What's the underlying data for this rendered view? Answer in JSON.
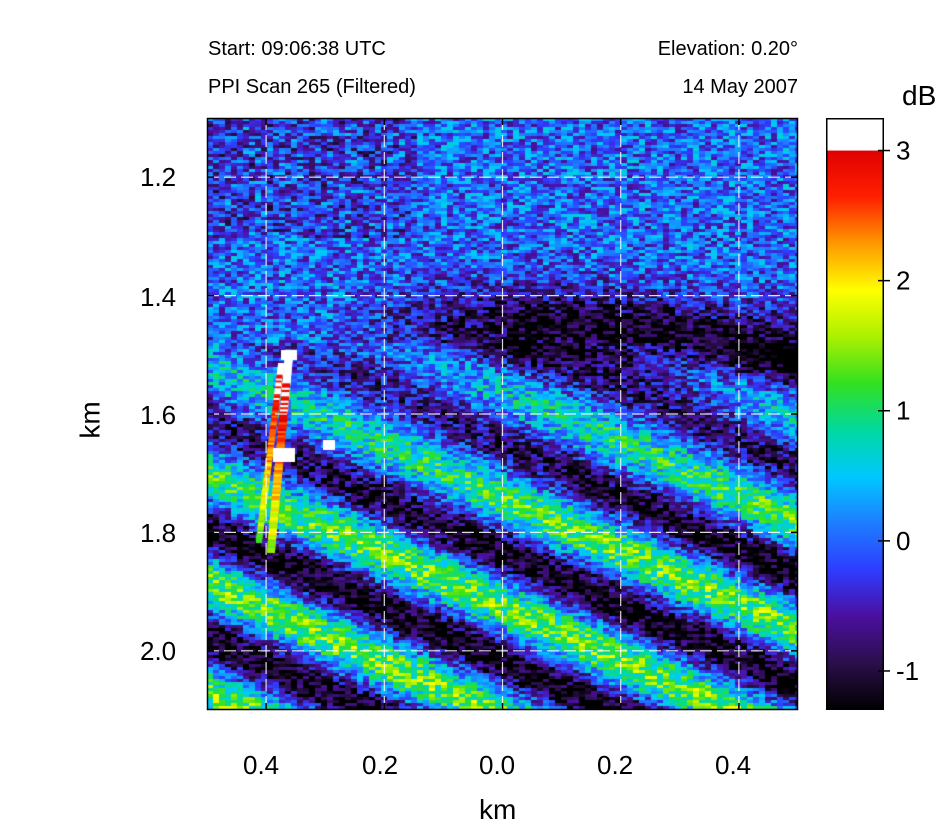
{
  "header": {
    "start": "Start: 09:06:38 UTC",
    "scan": "PPI Scan 265 (Filtered)",
    "elevation": "Elevation: 0.20°",
    "date": "14 May 2007"
  },
  "colorbar": {
    "unit": "dB",
    "ticks": [
      "3",
      "2",
      "1",
      "0",
      "-1"
    ],
    "tick_values": [
      3,
      2,
      1,
      0,
      -1
    ],
    "range": [
      -1.3,
      3.25
    ],
    "saturation_color": "#ffffff"
  },
  "chart_data": {
    "type": "heatmap",
    "title": "PPI Scan 265 (Filtered)",
    "xlabel": "km",
    "ylabel": "km",
    "x_tick_labels": [
      "0.4",
      "0.2",
      "0.0",
      "0.2",
      "0.4"
    ],
    "x_tick_values": [
      -0.4,
      -0.2,
      0.0,
      0.2,
      0.4
    ],
    "y_tick_labels": [
      "1.2",
      "1.4",
      "1.6",
      "1.8",
      "2.0"
    ],
    "y_tick_values": [
      1.2,
      1.4,
      1.6,
      1.8,
      2.0
    ],
    "xlim": [
      -0.5,
      0.5
    ],
    "ylim": [
      1.1,
      2.1
    ],
    "y_inverted": true,
    "grid": true,
    "grid_style": "dashed white",
    "value_range_db": [
      -1.3,
      3.25
    ],
    "description_values": {
      "background_db": 0.0,
      "dark_band_db": -1.2,
      "stripe_peak_db": 1.2,
      "target_peak_db": 3.2
    },
    "colormap": [
      "#000000",
      "#2a0f4a",
      "#4b0f9e",
      "#2e3cff",
      "#1d7dff",
      "#00c8ff",
      "#00d9a0",
      "#32e020",
      "#aaf000",
      "#ffff00",
      "#ff9900",
      "#ff2000",
      "#e00000"
    ]
  }
}
